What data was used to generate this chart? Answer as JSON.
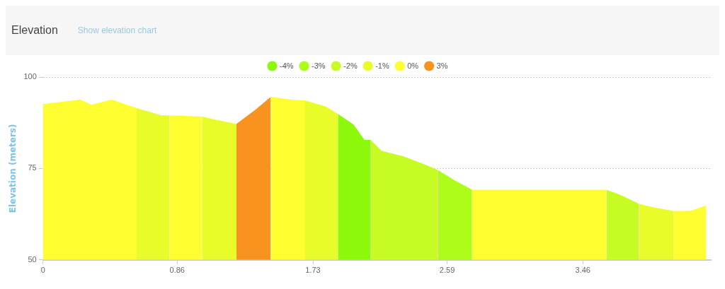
{
  "chart_data": {
    "type": "area",
    "title": "Elevation",
    "subtitle": "Show elevation chart",
    "ylabel": "Elevation (meters)",
    "xlim": [
      0,
      4.28
    ],
    "xticks": [
      0,
      0.86,
      1.73,
      2.59,
      3.46
    ],
    "ylim": [
      50,
      100
    ],
    "yticks": [
      50,
      75,
      100
    ],
    "grid": "y",
    "legend": "top",
    "marker": "none",
    "series": [
      {
        "name": "-4%",
        "color": "#8cf90a",
        "x": [
          1.89,
          1.99,
          2.06,
          2.1
        ],
        "values": [
          89.9,
          87,
          82.8,
          82.8
        ]
      },
      {
        "name": "-3%",
        "color": "#adfc1a",
        "x": [
          2.53,
          2.64,
          2.75
        ],
        "values": [
          74.6,
          71.7,
          69.2
        ]
      },
      {
        "name": "-2%",
        "color": "#c6fc23",
        "x": [
          2.1,
          2.17,
          2.31,
          2.44,
          2.53,
          3.0,
          3.61,
          3.7,
          3.82
        ],
        "values": [
          82.8,
          79.8,
          78.3,
          76.2,
          74.6,
          null,
          69.2,
          67.8,
          65.3
        ]
      },
      {
        "name": "-1%",
        "color": "#e8fc2a",
        "x": [
          0.6,
          0.76,
          0.81,
          0.9,
          1.02,
          1.14,
          1.24,
          1.5,
          1.68,
          1.81,
          1.89,
          3.0,
          3.82,
          3.92,
          4.04
        ],
        "values": [
          91.5,
          89.5,
          89.5,
          null,
          89.2,
          88,
          87.2,
          null,
          93.6,
          92,
          89.9,
          null,
          65.3,
          64.3,
          63.4
        ]
      },
      {
        "name": "0%",
        "color": "#fdfd30",
        "x": [
          0,
          0.24,
          0.31,
          0.44,
          0.6,
          0.7,
          0.81,
          0.96,
          1.02,
          1.2,
          1.46,
          1.59,
          1.68,
          2.0,
          2.75,
          3.61,
          3.8,
          4.04,
          4.15,
          4.25
        ],
        "values": [
          92.6,
          93.8,
          92.4,
          93.8,
          91.5,
          null,
          89.5,
          89.3,
          89.2,
          null,
          94.6,
          93.8,
          93.6,
          null,
          69.2,
          69.2,
          null,
          63.4,
          63.4,
          64.9
        ]
      },
      {
        "name": "3%",
        "color": "#f7931e",
        "x": [
          1.24,
          1.36,
          1.46
        ],
        "values": [
          87.2,
          91,
          94.6
        ]
      }
    ]
  }
}
